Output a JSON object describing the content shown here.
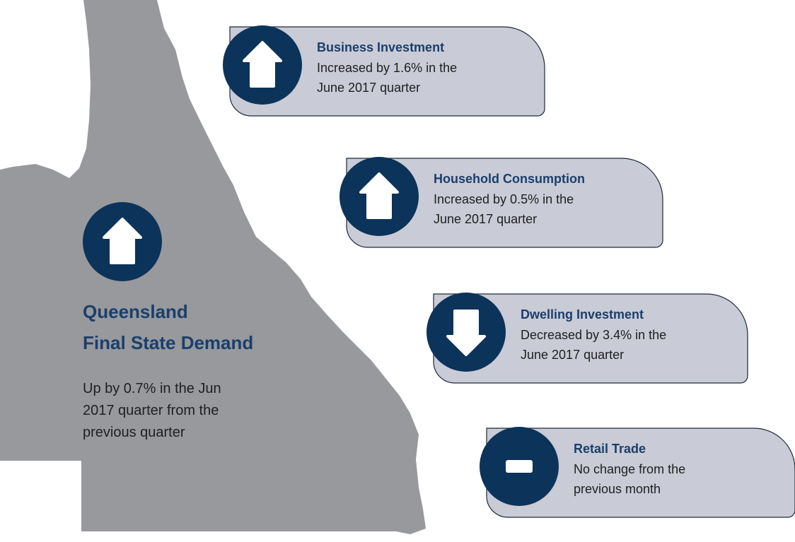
{
  "summary": {
    "title_lines": [
      "Queensland",
      "Final State Demand"
    ],
    "lines": [
      "Up by 0.7% in the Jun",
      "2017 quarter from the",
      "previous quarter"
    ],
    "icon": "up"
  },
  "indicators": [
    {
      "title": "Business Investment",
      "lines": [
        "Increased by 1.6% in the",
        "June 2017 quarter"
      ],
      "icon": "up"
    },
    {
      "title": "Household Consumption",
      "lines": [
        "Increased by 0.5% in the",
        "June 2017 quarter"
      ],
      "icon": "up"
    },
    {
      "title": "Dwelling Investment",
      "lines": [
        "Decreased by 3.4% in the",
        "June 2017 quarter"
      ],
      "icon": "down"
    },
    {
      "title": "Retail Trade",
      "lines": [
        "No change from the",
        "previous month"
      ],
      "icon": "flat"
    }
  ]
}
